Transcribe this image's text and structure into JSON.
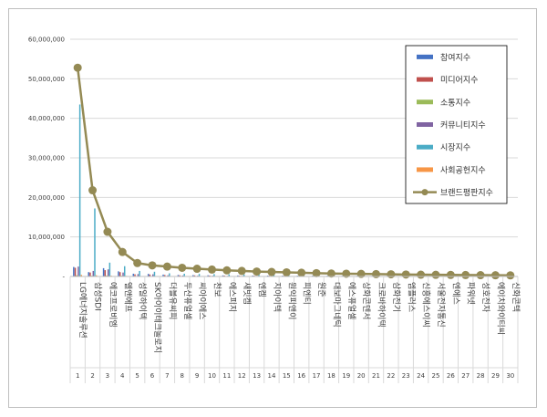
{
  "chart_data": {
    "type": "bar",
    "title": "",
    "xlabel": "",
    "ylabel": "",
    "ylim": [
      0,
      60000000
    ],
    "yticks": [
      "-",
      "10,000,000",
      "20,000,000",
      "30,000,000",
      "40,000,000",
      "50,000,000",
      "60,000,000"
    ],
    "grid": true,
    "legend_position": "right",
    "x": [
      "1",
      "2",
      "3",
      "4",
      "5",
      "6",
      "7",
      "8",
      "9",
      "10",
      "11",
      "12",
      "13",
      "14",
      "15",
      "16",
      "17",
      "18",
      "19",
      "20",
      "21",
      "22",
      "23",
      "24",
      "25",
      "26",
      "27",
      "28",
      "29",
      "30"
    ],
    "categories": [
      "LG에너지솔루션",
      "삼성SDI",
      "에코프로비엠",
      "엘앤에프",
      "성일하이텍",
      "SK아이이테크놀로지",
      "더블유씨피",
      "두산퓨얼셀",
      "씨아이에스",
      "천보",
      "에스피지",
      "새빗켐",
      "엔켐",
      "지아이텍",
      "원익피앤이",
      "피엔티",
      "원준",
      "대보마그네틱",
      "에스퓨얼셀",
      "상화콘덴서",
      "크로바하이텍",
      "삼화전기",
      "엠플러스",
      "신흥에스이씨",
      "서울전자통신",
      "엔에스",
      "파워넷",
      "성호전자",
      "에이치와이티씨",
      "신화콘텍"
    ],
    "series": [
      {
        "name": "참여지수",
        "color": "#4472c4",
        "values": [
          2400000,
          1100000,
          2100000,
          1300000,
          700000,
          650000,
          480000,
          380000,
          340000,
          300000,
          280000,
          260000,
          240000,
          220000,
          210000,
          200000,
          190000,
          180000,
          170000,
          160000,
          150000,
          140000,
          130000,
          120000,
          110000,
          100000,
          95000,
          90000,
          85000,
          80000
        ]
      },
      {
        "name": "미디어지수",
        "color": "#c0504d",
        "values": [
          2200000,
          1000000,
          1600000,
          1100000,
          550000,
          500000,
          380000,
          300000,
          280000,
          240000,
          220000,
          200000,
          190000,
          180000,
          170000,
          160000,
          150000,
          140000,
          130000,
          120000,
          110000,
          100000,
          95000,
          90000,
          85000,
          80000,
          75000,
          70000,
          65000,
          60000
        ]
      },
      {
        "name": "소통지수",
        "color": "#9bbb59",
        "values": [
          300000,
          200000,
          250000,
          200000,
          100000,
          100000,
          80000,
          60000,
          50000,
          40000,
          35000,
          30000,
          28000,
          26000,
          24000,
          22000,
          20000,
          18000,
          16000,
          15000,
          14000,
          13000,
          12000,
          11000,
          10000,
          9000,
          8000,
          7000,
          6000,
          5000
        ]
      },
      {
        "name": "커뮤니티지수",
        "color": "#8064a2",
        "values": [
          2500000,
          1400000,
          1800000,
          1000000,
          600000,
          550000,
          300000,
          250000,
          200000,
          180000,
          160000,
          150000,
          140000,
          130000,
          120000,
          110000,
          100000,
          90000,
          85000,
          80000,
          75000,
          70000,
          65000,
          60000,
          55000,
          50000,
          45000,
          40000,
          35000,
          30000
        ]
      },
      {
        "name": "시장지수",
        "color": "#4bacc6",
        "values": [
          43500000,
          17200000,
          3500000,
          2600000,
          1400000,
          1200000,
          800000,
          700000,
          650000,
          600000,
          550000,
          500000,
          450000,
          400000,
          380000,
          360000,
          340000,
          320000,
          300000,
          280000,
          260000,
          240000,
          220000,
          200000,
          190000,
          180000,
          170000,
          160000,
          150000,
          140000
        ]
      },
      {
        "name": "사회공헌지수",
        "color": "#f79646",
        "values": [
          400000,
          300000,
          200000,
          150000,
          100000,
          90000,
          70000,
          60000,
          50000,
          40000,
          35000,
          30000,
          28000,
          26000,
          24000,
          22000,
          20000,
          18000,
          16000,
          15000,
          14000,
          13000,
          12000,
          11000,
          10000,
          9000,
          8000,
          7000,
          6000,
          5000
        ]
      },
      {
        "name": "브랜드평판지수",
        "color": "#948a54",
        "line": true,
        "values": [
          52800000,
          21800000,
          11300000,
          6200000,
          3400000,
          2800000,
          2500000,
          2200000,
          1950000,
          1750000,
          1550000,
          1400000,
          1250000,
          1150000,
          1050000,
          950000,
          850000,
          750000,
          700000,
          650000,
          600000,
          550000,
          500000,
          460000,
          430000,
          400000,
          370000,
          340000,
          310000,
          280000
        ]
      }
    ]
  }
}
